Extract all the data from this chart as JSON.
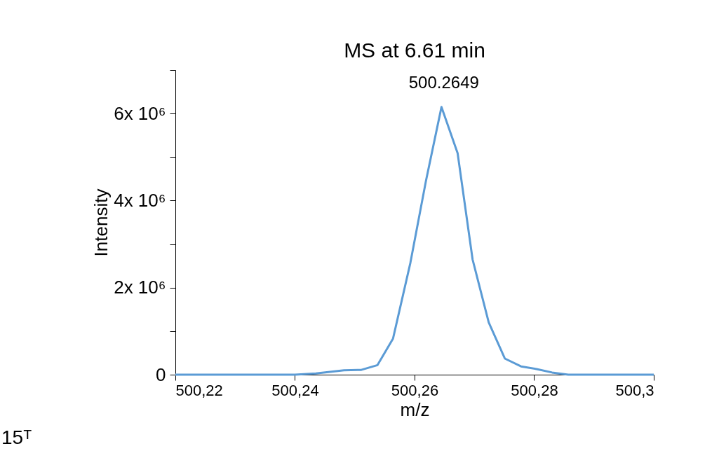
{
  "chart_data": {
    "type": "line",
    "title": "MS at 6.61 min",
    "xlabel": "m/z",
    "ylabel": "Intensity",
    "x": [
      500.22,
      500.23,
      500.24,
      500.2435,
      500.2482,
      500.2511,
      500.2538,
      500.2564,
      500.2593,
      500.2619,
      500.2645,
      500.2672,
      500.2697,
      500.2724,
      500.2751,
      500.2778,
      500.2804,
      500.283,
      500.2857,
      500.29,
      500.3
    ],
    "series": [
      {
        "color": "#5b9bd5",
        "values": [
          0,
          0,
          0,
          30000,
          100000,
          110000,
          220000,
          830000,
          2570000,
          4450000,
          6150000,
          5090000,
          2650000,
          1200000,
          370000,
          190000,
          130000,
          50000,
          0,
          0,
          0
        ]
      }
    ],
    "xlim": [
      500.22,
      500.3
    ],
    "xticks": [
      {
        "value": 500.22,
        "label": "500,22"
      },
      {
        "value": 500.24,
        "label": "500,24"
      },
      {
        "value": 500.26,
        "label": "500,26"
      },
      {
        "value": 500.28,
        "label": "500,28"
      },
      {
        "value": 500.3,
        "label": "500,3"
      }
    ],
    "ylim": [
      0,
      7000000
    ],
    "yticks": [
      0,
      {
        "value": 1000000,
        "label": null
      },
      {
        "value": 2000000,
        "label": "2x 10⁶"
      },
      {
        "value": 3000000,
        "label": null
      },
      {
        "value": 4000000,
        "label": "4x 10⁶"
      },
      {
        "value": 5000000,
        "label": null
      },
      {
        "value": 6000000,
        "label": "6x 10⁶"
      },
      {
        "value": 7000000,
        "label": null
      }
    ],
    "annotations": [
      {
        "text": "500.2649",
        "x": 500.2649,
        "y": 6150000
      },
      "15ᵀ"
    ],
    "grid": false,
    "marker": "none",
    "line_style": "solid"
  }
}
